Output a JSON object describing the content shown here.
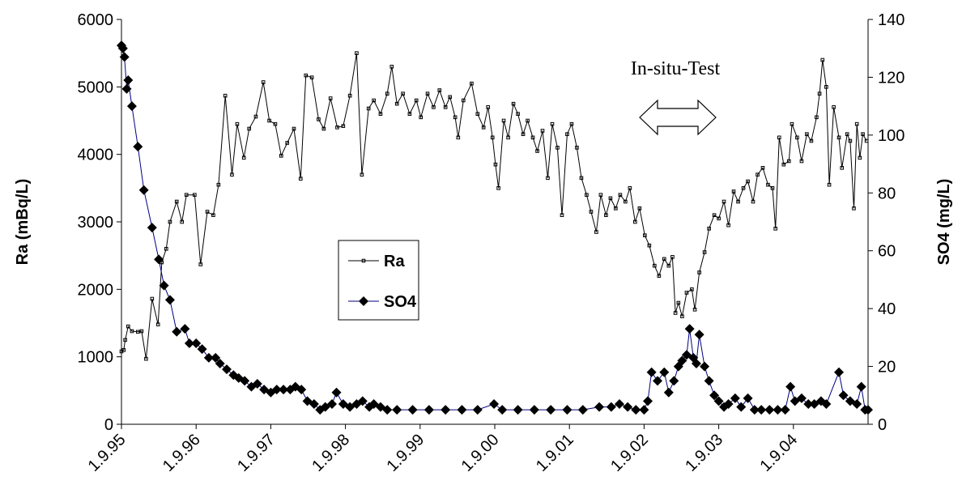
{
  "chart_data": {
    "type": "line",
    "y_label": "Ra (mBq/L)",
    "y2_label": "SO4 (mg/L)",
    "annotation": "In-situ-Test",
    "xlim": [
      1995.67,
      2005.67
    ],
    "xticks": [
      {
        "value": 1995.67,
        "label": "1.9.95"
      },
      {
        "value": 1996.67,
        "label": "1.9.96"
      },
      {
        "value": 1997.67,
        "label": "1.9.97"
      },
      {
        "value": 1998.67,
        "label": "1.9.98"
      },
      {
        "value": 1999.67,
        "label": "1.9.99"
      },
      {
        "value": 2000.67,
        "label": "1.9.00"
      },
      {
        "value": 2001.67,
        "label": "1.9.01"
      },
      {
        "value": 2002.67,
        "label": "1.9.02"
      },
      {
        "value": 2003.67,
        "label": "1.9.03"
      },
      {
        "value": 2004.67,
        "label": "1.9.04"
      }
    ],
    "ylim": [
      0,
      6000
    ],
    "yticks": [
      0,
      1000,
      2000,
      3000,
      4000,
      5000,
      6000
    ],
    "y2lim": [
      0,
      140
    ],
    "y2ticks": [
      0,
      20,
      40,
      60,
      80,
      100,
      120,
      140
    ],
    "grid": false,
    "series": [
      {
        "name": "Ra",
        "color": "#000000",
        "marker": "square",
        "x": [
          1995.67,
          1995.7,
          1995.72,
          1995.76,
          1995.81,
          1995.89,
          1995.94,
          1996.0,
          1996.08,
          1996.16,
          1996.21,
          1996.27,
          1996.32,
          1996.41,
          1996.48,
          1996.54,
          1996.65,
          1996.73,
          1996.82,
          1996.9,
          1996.97,
          1997.06,
          1997.15,
          1997.22,
          1997.31,
          1997.38,
          1997.47,
          1997.57,
          1997.65,
          1997.73,
          1997.81,
          1997.89,
          1997.98,
          1998.07,
          1998.14,
          1998.22,
          1998.31,
          1998.38,
          1998.47,
          1998.56,
          1998.64,
          1998.73,
          1998.82,
          1998.89,
          1998.98,
          1999.05,
          1999.14,
          1999.23,
          1999.29,
          1999.36,
          1999.44,
          1999.53,
          1999.62,
          1999.68,
          1999.77,
          1999.85,
          1999.93,
          2000.01,
          2000.07,
          2000.14,
          2000.18,
          2000.25,
          2000.36,
          2000.44,
          2000.52,
          2000.58,
          2000.64,
          2000.68,
          2000.72,
          2000.79,
          2000.85,
          2000.92,
          2000.98,
          2001.05,
          2001.11,
          2001.18,
          2001.24,
          2001.31,
          2001.38,
          2001.44,
          2001.51,
          2001.57,
          2001.64,
          2001.7,
          2001.77,
          2001.83,
          2001.9,
          2001.96,
          2002.03,
          2002.09,
          2002.16,
          2002.22,
          2002.29,
          2002.35,
          2002.42,
          2002.48,
          2002.55,
          2002.61,
          2002.68,
          2002.74,
          2002.81,
          2002.87,
          2002.94,
          2003.0,
          2003.05,
          2003.09,
          2003.13,
          2003.18,
          2003.24,
          2003.31,
          2003.35,
          2003.41,
          2003.48,
          2003.54,
          2003.61,
          2003.67,
          2003.74,
          2003.8,
          2003.87,
          2003.93,
          2004.0,
          2004.06,
          2004.13,
          2004.19,
          2004.26,
          2004.33,
          2004.39,
          2004.43,
          2004.48,
          2004.54,
          2004.61,
          2004.65,
          2004.72,
          2004.78,
          2004.85,
          2004.91,
          2004.98,
          2005.02,
          2005.06,
          2005.11,
          2005.15,
          2005.21,
          2005.28,
          2005.32,
          2005.39,
          2005.43,
          2005.48,
          2005.52,
          2005.56,
          2005.6,
          2005.65
        ],
        "values": [
          1080,
          1100,
          1250,
          1450,
          1380,
          1370,
          1380,
          970,
          1860,
          1480,
          2400,
          2600,
          3000,
          3300,
          3000,
          3400,
          3400,
          2370,
          3150,
          3100,
          3550,
          4870,
          3700,
          4450,
          3950,
          4380,
          4560,
          5070,
          4500,
          4450,
          3980,
          4170,
          4380,
          3640,
          5170,
          5140,
          4520,
          4380,
          4830,
          4400,
          4420,
          4870,
          5500,
          3700,
          4680,
          4800,
          4600,
          4900,
          5300,
          4750,
          4900,
          4600,
          4800,
          4550,
          4900,
          4700,
          4950,
          4700,
          4850,
          4550,
          4250,
          4800,
          5050,
          4600,
          4400,
          4700,
          4250,
          3850,
          3500,
          4500,
          4250,
          4750,
          4600,
          4300,
          4500,
          4250,
          4050,
          4350,
          3650,
          4450,
          4100,
          3100,
          4300,
          4450,
          4100,
          3650,
          3400,
          3150,
          2850,
          3400,
          3100,
          3350,
          3200,
          3400,
          3300,
          3500,
          3000,
          3200,
          2800,
          2650,
          2350,
          2200,
          2450,
          2350,
          2480,
          1650,
          1800,
          1600,
          1950,
          2000,
          1700,
          2250,
          2550,
          2900,
          3100,
          3050,
          3300,
          2950,
          3450,
          3300,
          3500,
          3600,
          3300,
          3700,
          3800,
          3550,
          3500,
          2900,
          4250,
          3850,
          3900,
          4450,
          4250,
          3900,
          4300,
          4200,
          4550,
          4900,
          5400,
          5000,
          3550,
          4700,
          4250,
          3800,
          4300,
          4200,
          3200,
          4450,
          3950,
          4300,
          4200
        ]
      },
      {
        "name": "SO4",
        "color": "#000080",
        "marker": "diamond",
        "axis": "y2",
        "x": [
          1995.67,
          1995.69,
          1995.71,
          1995.74,
          1995.76,
          1995.81,
          1995.89,
          1995.97,
          1996.08,
          1996.17,
          1996.24,
          1996.32,
          1996.41,
          1996.52,
          1996.58,
          1996.67,
          1996.75,
          1996.84,
          1996.93,
          1996.99,
          1997.08,
          1997.17,
          1997.24,
          1997.32,
          1997.41,
          1997.49,
          1997.58,
          1997.67,
          1997.75,
          1997.84,
          1997.93,
          1998.0,
          1998.08,
          1998.16,
          1998.25,
          1998.33,
          1998.4,
          1998.49,
          1998.55,
          1998.64,
          1998.73,
          1998.82,
          1998.9,
          1998.99,
          1999.05,
          1999.14,
          1999.23,
          1999.36,
          1999.57,
          1999.79,
          2000.01,
          2000.23,
          2000.44,
          2000.66,
          2000.77,
          2000.98,
          2001.2,
          2001.42,
          2001.64,
          2001.85,
          2002.07,
          2002.23,
          2002.34,
          2002.45,
          2002.56,
          2002.67,
          2002.72,
          2002.77,
          2002.85,
          2002.94,
          2003.0,
          2003.07,
          2003.13,
          2003.18,
          2003.24,
          2003.28,
          2003.33,
          2003.37,
          2003.41,
          2003.48,
          2003.54,
          2003.61,
          2003.67,
          2003.74,
          2003.8,
          2003.89,
          2003.97,
          2004.06,
          2004.15,
          2004.24,
          2004.35,
          2004.46,
          2004.56,
          2004.63,
          2004.69,
          2004.78,
          2004.87,
          2004.95,
          2005.04,
          2005.11,
          2005.28,
          2005.34,
          2005.43,
          2005.52,
          2005.58,
          2005.63,
          2005.67
        ],
        "values": [
          131,
          130,
          127,
          116,
          119,
          110,
          96,
          81,
          68,
          57,
          48,
          43,
          32,
          33,
          28,
          28,
          26,
          23,
          23,
          21,
          19,
          17,
          16,
          15,
          13,
          14,
          12,
          11,
          12,
          12,
          12,
          13,
          12,
          8,
          7,
          5,
          6,
          7,
          11,
          7,
          6,
          7,
          8,
          6,
          7,
          6,
          5,
          5,
          5,
          5,
          5,
          5,
          5,
          7,
          5,
          5,
          5,
          5,
          5,
          5,
          6,
          6,
          7,
          6,
          5,
          5,
          8,
          18,
          15,
          18,
          11,
          15,
          20,
          22,
          24,
          33,
          23,
          21,
          31,
          20,
          15,
          10,
          8,
          6,
          7,
          9,
          6,
          9,
          5,
          5,
          5,
          5,
          5,
          13,
          8,
          9,
          7,
          7,
          8,
          7,
          18,
          10,
          8,
          7,
          13,
          5,
          5
        ]
      }
    ]
  }
}
